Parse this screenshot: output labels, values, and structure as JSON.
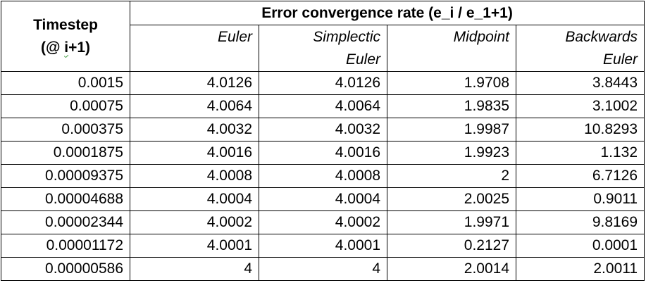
{
  "table": {
    "timestep_header_line1": "Timestep",
    "timestep_header_line2_prefix": "(@ ",
    "timestep_header_line2_i": "i",
    "timestep_header_line2_suffix": "+1)",
    "group_header": "Error convergence rate (e_i / e_1+1)",
    "columns": [
      {
        "line1": "Euler",
        "line2": ""
      },
      {
        "line1": "Simplectic",
        "line2": "Euler"
      },
      {
        "line1": "Midpoint",
        "line2": ""
      },
      {
        "line1": "Backwards",
        "line2": "Euler"
      }
    ],
    "rows": [
      {
        "timestep": "0.0015",
        "values": [
          "4.0126",
          "4.0126",
          "1.9708",
          "3.8443"
        ]
      },
      {
        "timestep": "0.00075",
        "values": [
          "4.0064",
          "4.0064",
          "1.9835",
          "3.1002"
        ]
      },
      {
        "timestep": "0.000375",
        "values": [
          "4.0032",
          "4.0032",
          "1.9987",
          "10.8293"
        ]
      },
      {
        "timestep": "0.0001875",
        "values": [
          "4.0016",
          "4.0016",
          "1.9923",
          "1.132"
        ]
      },
      {
        "timestep": "0.00009375",
        "values": [
          "4.0008",
          "4.0008",
          "2",
          "6.7126"
        ]
      },
      {
        "timestep": "0.00004688",
        "values": [
          "4.0004",
          "4.0004",
          "2.0025",
          "0.9011"
        ]
      },
      {
        "timestep": "0.00002344",
        "values": [
          "4.0002",
          "4.0002",
          "1.9971",
          "9.8169"
        ]
      },
      {
        "timestep": "0.00001172",
        "values": [
          "4.0001",
          "4.0001",
          "0.2127",
          "0.0001"
        ]
      },
      {
        "timestep": "0.00000586",
        "values": [
          "4",
          "4",
          "2.0014",
          "2.0011"
        ]
      }
    ]
  }
}
